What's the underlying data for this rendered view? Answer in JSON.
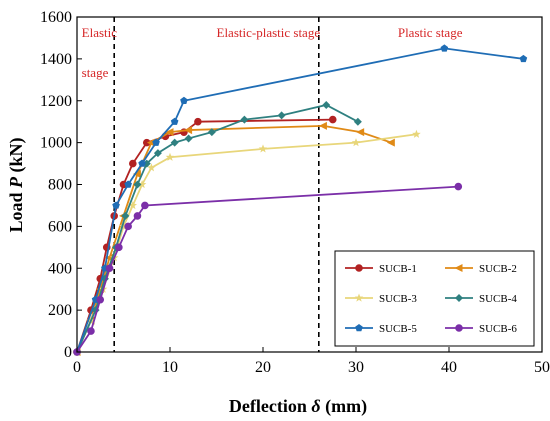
{
  "chart_data": {
    "type": "line",
    "xlabel_parts": [
      "Deflection ",
      "δ",
      " (mm)"
    ],
    "ylabel_parts": [
      "Load ",
      "P",
      " (kN)"
    ],
    "xlim": [
      0,
      50
    ],
    "ylim": [
      0,
      1600
    ],
    "xticks": [
      0,
      10,
      20,
      30,
      40,
      50
    ],
    "yticks": [
      0,
      200,
      400,
      600,
      800,
      1000,
      1200,
      1400,
      1600
    ],
    "grid": false,
    "legend_position": "bottom-right",
    "dividers": [
      4,
      26
    ],
    "stage_labels": [
      {
        "lines": [
          "Elastic",
          "stage"
        ],
        "x": 0.5
      },
      {
        "lines": [
          "Elastic-plastic stage"
        ],
        "x": 15
      },
      {
        "lines": [
          "Plastic stage"
        ],
        "x": 34.5
      }
    ],
    "series": [
      {
        "name": "SUCB-1",
        "color": "#b22222",
        "marker": "circle",
        "x": [
          0,
          1.5,
          2.5,
          3.2,
          4,
          5,
          6,
          7.5,
          9.5,
          11.5,
          13,
          27.5
        ],
        "y": [
          0,
          200,
          350,
          500,
          650,
          800,
          900,
          1000,
          1030,
          1050,
          1100,
          1110
        ]
      },
      {
        "name": "SUCB-2",
        "color": "#e08a16",
        "marker": "triangle-left",
        "x": [
          0,
          1.5,
          2.5,
          3.5,
          5,
          6.5,
          8,
          10,
          12,
          26.5,
          30.5,
          33.8
        ],
        "y": [
          0,
          150,
          300,
          450,
          650,
          850,
          1000,
          1050,
          1060,
          1080,
          1050,
          1000
        ]
      },
      {
        "name": "SUCB-3",
        "color": "#e8d67a",
        "marker": "star",
        "x": [
          0,
          1.5,
          2.8,
          4,
          5,
          6,
          7,
          8,
          10,
          20,
          30,
          36.5
        ],
        "y": [
          0,
          150,
          300,
          450,
          600,
          700,
          800,
          880,
          930,
          970,
          1000,
          1040
        ]
      },
      {
        "name": "SUCB-4",
        "color": "#2f8080",
        "marker": "diamond",
        "x": [
          0,
          2,
          3,
          4.2,
          5.2,
          6.5,
          7.5,
          8.7,
          10.5,
          12,
          14.5,
          18,
          22,
          26.8,
          30.2
        ],
        "y": [
          0,
          200,
          350,
          500,
          650,
          800,
          900,
          950,
          1000,
          1020,
          1050,
          1110,
          1130,
          1180,
          1100
        ]
      },
      {
        "name": "SUCB-5",
        "color": "#1f6db5",
        "marker": "pentagon",
        "x": [
          0,
          2,
          3,
          4.2,
          5.5,
          7,
          8.5,
          10.5,
          11.5,
          39.5,
          48
        ],
        "y": [
          0,
          250,
          400,
          700,
          800,
          900,
          1000,
          1100,
          1200,
          1450,
          1400
        ]
      },
      {
        "name": "SUCB-6",
        "color": "#7b2fa8",
        "marker": "circle",
        "x": [
          0,
          1.5,
          2.5,
          3.5,
          4.5,
          5.5,
          6.5,
          7.3,
          41
        ],
        "y": [
          0,
          100,
          250,
          400,
          500,
          600,
          650,
          700,
          790
        ]
      }
    ]
  }
}
